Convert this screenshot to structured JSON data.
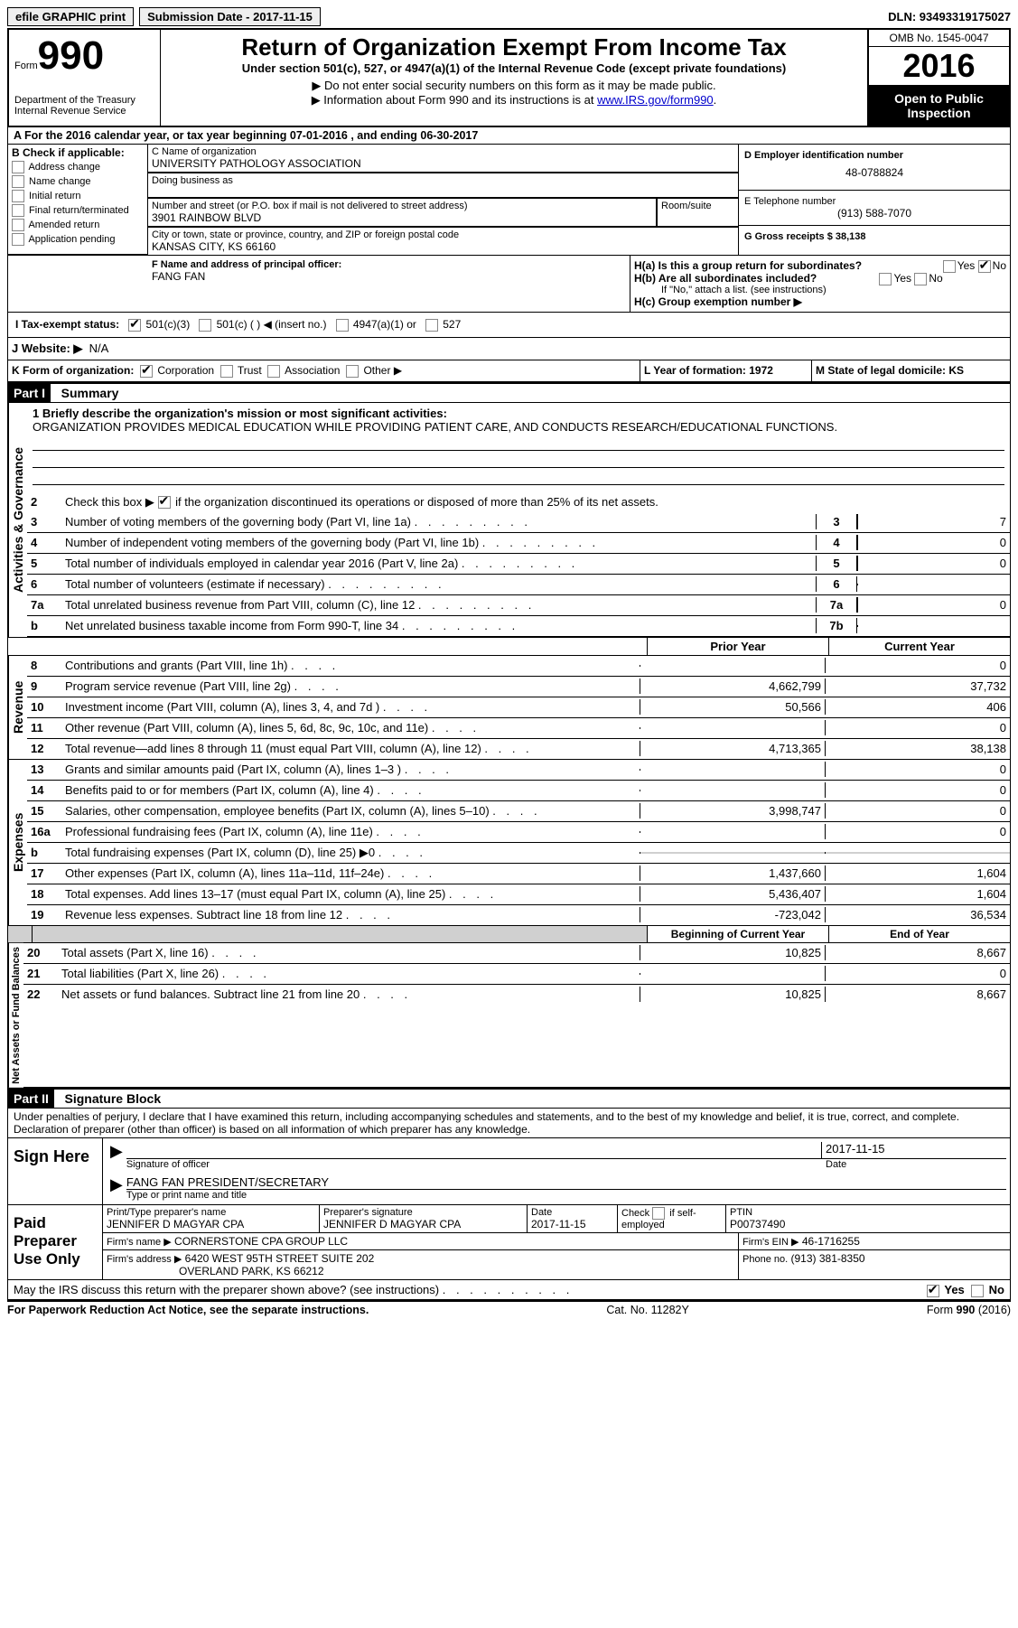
{
  "topbar": {
    "btn1": "efile GRAPHIC print",
    "btn2": "Submission Date - 2017-11-15",
    "dln": "DLN: 93493319175027"
  },
  "header": {
    "form_small": "Form",
    "form_num": "990",
    "dept1": "Department of the Treasury",
    "dept2": "Internal Revenue Service",
    "title": "Return of Organization Exempt From Income Tax",
    "subtitle": "Under section 501(c), 527, or 4947(a)(1) of the Internal Revenue Code (except private foundations)",
    "note1": "▶ Do not enter social security numbers on this form as it may be made public.",
    "note2": "▶ Information about Form 990 and its instructions is at ",
    "note2_link": "www.IRS.gov/form990",
    "note2_after": ".",
    "omb": "OMB No. 1545-0047",
    "year": "2016",
    "open": "Open to Public Inspection"
  },
  "secA": {
    "head": "A  For the 2016 calendar year, or tax year beginning 07-01-2016    , and ending 06-30-2017",
    "B_label": "B Check if applicable:",
    "B_opts": [
      "Address change",
      "Name change",
      "Initial return",
      "Final return/terminated",
      "Amended return",
      "Application pending"
    ],
    "C_namelbl": "C Name of organization",
    "C_name": "UNIVERSITY PATHOLOGY ASSOCIATION",
    "dba_lbl": "Doing business as",
    "addr_lbl": "Number and street (or P.O. box if mail is not delivered to street address)",
    "room_lbl": "Room/suite",
    "addr": "3901 RAINBOW BLVD",
    "city_lbl": "City or town, state or province, country, and ZIP or foreign postal code",
    "city": "KANSAS CITY, KS  66160",
    "D_lbl": "D Employer identification number",
    "D_val": "48-0788824",
    "E_lbl": "E Telephone number",
    "E_val": "(913) 588-7070",
    "G_lbl": "G Gross receipts $ 38,138",
    "F_lbl": "F  Name and address of principal officer:",
    "F_val": "FANG FAN",
    "Ha_lbl": "H(a)  Is this a group return for subordinates?",
    "Hb_lbl": "H(b)  Are all subordinates included?",
    "H_note": "If \"No,\" attach a list. (see instructions)",
    "Hc_lbl": "H(c)  Group exemption number ▶",
    "yes": "Yes",
    "no": "No",
    "I_lbl": "I  Tax-exempt status:",
    "I_501c3": "501(c)(3)",
    "I_501c": "501(c) (   ) ◀ (insert no.)",
    "I_4947": "4947(a)(1) or",
    "I_527": "527",
    "J_lbl": "J  Website: ▶",
    "J_val": "N/A",
    "K_lbl": "K Form of organization:",
    "K_corp": "Corporation",
    "K_trust": "Trust",
    "K_assoc": "Association",
    "K_other": "Other ▶",
    "L_lbl": "L Year of formation: 1972",
    "M_lbl": "M State of legal domicile: KS"
  },
  "part1": {
    "title": "Part I",
    "title2": "Summary",
    "vlabels": {
      "ag": "Activities & Governance",
      "rev": "Revenue",
      "exp": "Expenses",
      "na": "Net Assets or Fund Balances"
    },
    "l1_lbl": "1 Briefly describe the organization's mission or most significant activities:",
    "l1_txt": "ORGANIZATION PROVIDES MEDICAL EDUCATION WHILE PROVIDING PATIENT CARE, AND CONDUCTS RESEARCH/EDUCATIONAL FUNCTIONS.",
    "l2_lbl": "Check this box ▶",
    "l2_txt": "if the organization discontinued its operations or disposed of more than 25% of its net assets.",
    "lines_ag": [
      {
        "n": "3",
        "d": "Number of voting members of the governing body (Part VI, line 1a)",
        "b": "3",
        "v": "7"
      },
      {
        "n": "4",
        "d": "Number of independent voting members of the governing body (Part VI, line 1b)",
        "b": "4",
        "v": "0"
      },
      {
        "n": "5",
        "d": "Total number of individuals employed in calendar year 2016 (Part V, line 2a)",
        "b": "5",
        "v": "0"
      },
      {
        "n": "6",
        "d": "Total number of volunteers (estimate if necessary)",
        "b": "6",
        "v": ""
      },
      {
        "n": "7a",
        "d": "Total unrelated business revenue from Part VIII, column (C), line 12",
        "b": "7a",
        "v": "0"
      },
      {
        "n": "b",
        "d": "Net unrelated business taxable income from Form 990-T, line 34",
        "b": "7b",
        "v": ""
      }
    ],
    "col_prior": "Prior Year",
    "col_curr": "Current Year",
    "lines_rev": [
      {
        "n": "8",
        "d": "Contributions and grants (Part VIII, line 1h)",
        "p": "",
        "c": "0"
      },
      {
        "n": "9",
        "d": "Program service revenue (Part VIII, line 2g)",
        "p": "4,662,799",
        "c": "37,732"
      },
      {
        "n": "10",
        "d": "Investment income (Part VIII, column (A), lines 3, 4, and 7d )",
        "p": "50,566",
        "c": "406"
      },
      {
        "n": "11",
        "d": "Other revenue (Part VIII, column (A), lines 5, 6d, 8c, 9c, 10c, and 11e)",
        "p": "",
        "c": "0"
      },
      {
        "n": "12",
        "d": "Total revenue—add lines 8 through 11 (must equal Part VIII, column (A), line 12)",
        "p": "4,713,365",
        "c": "38,138"
      }
    ],
    "lines_exp": [
      {
        "n": "13",
        "d": "Grants and similar amounts paid (Part IX, column (A), lines 1–3 )",
        "p": "",
        "c": "0"
      },
      {
        "n": "14",
        "d": "Benefits paid to or for members (Part IX, column (A), line 4)",
        "p": "",
        "c": "0"
      },
      {
        "n": "15",
        "d": "Salaries, other compensation, employee benefits (Part IX, column (A), lines 5–10)",
        "p": "3,998,747",
        "c": "0"
      },
      {
        "n": "16a",
        "d": "Professional fundraising fees (Part IX, column (A), line 11e)",
        "p": "",
        "c": "0"
      },
      {
        "n": "b",
        "d": "Total fundraising expenses (Part IX, column (D), line 25) ▶0",
        "p": "GRAY",
        "c": "GRAY"
      },
      {
        "n": "17",
        "d": "Other expenses (Part IX, column (A), lines 11a–11d, 11f–24e)",
        "p": "1,437,660",
        "c": "1,604"
      },
      {
        "n": "18",
        "d": "Total expenses. Add lines 13–17 (must equal Part IX, column (A), line 25)",
        "p": "5,436,407",
        "c": "1,604"
      },
      {
        "n": "19",
        "d": "Revenue less expenses. Subtract line 18 from line 12",
        "p": "-723,042",
        "c": "36,534"
      }
    ],
    "col_boy": "Beginning of Current Year",
    "col_eoy": "End of Year",
    "lines_na": [
      {
        "n": "20",
        "d": "Total assets (Part X, line 16)",
        "p": "10,825",
        "c": "8,667"
      },
      {
        "n": "21",
        "d": "Total liabilities (Part X, line 26)",
        "p": "",
        "c": "0"
      },
      {
        "n": "22",
        "d": "Net assets or fund balances. Subtract line 21 from line 20",
        "p": "10,825",
        "c": "8,667"
      }
    ]
  },
  "part2": {
    "title": "Part II",
    "title2": "Signature Block",
    "decl": "Under penalties of perjury, I declare that I have examined this return, including accompanying schedules and statements, and to the best of my knowledge and belief, it is true, correct, and complete. Declaration of preparer (other than officer) is based on all information of which preparer has any knowledge.",
    "sign_here": "Sign Here",
    "sig_officer": "Signature of officer",
    "sig_date": "Date",
    "sig_date_val": "2017-11-15",
    "officer": "FANG FAN PRESIDENT/SECRETARY",
    "type_name": "Type or print name and title",
    "paid": "Paid Preparer Use Only",
    "prep_name_lbl": "Print/Type preparer's name",
    "prep_name": "JENNIFER D MAGYAR CPA",
    "prep_sig_lbl": "Preparer's signature",
    "prep_sig": "JENNIFER D MAGYAR CPA",
    "prep_date_lbl": "Date",
    "prep_date": "2017-11-15",
    "prep_chk": "Check         if self-employed",
    "ptin_lbl": "PTIN",
    "ptin": "P00737490",
    "firm_name_lbl": "Firm's name      ▶",
    "firm_name": "CORNERSTONE CPA GROUP LLC",
    "firm_ein_lbl": "Firm's EIN ▶",
    "firm_ein": "46-1716255",
    "firm_addr_lbl": "Firm's address ▶",
    "firm_addr": "6420 WEST 95TH STREET SUITE 202",
    "firm_city": "OVERLAND PARK, KS  66212",
    "firm_phone_lbl": "Phone no.",
    "firm_phone": "(913) 381-8350",
    "discuss": "May the IRS discuss this return with the preparer shown above? (see instructions)"
  },
  "footer": {
    "pra": "For Paperwork Reduction Act Notice, see the separate instructions.",
    "cat": "Cat. No. 11282Y",
    "form": "Form 990 (2016)"
  },
  "style": {
    "colors": {
      "bg": "#ffffff",
      "fg": "#000000",
      "link": "#0000cc",
      "gray": "#d0d0d0"
    },
    "font": {
      "base_pt": 13,
      "family": "Arial"
    }
  }
}
